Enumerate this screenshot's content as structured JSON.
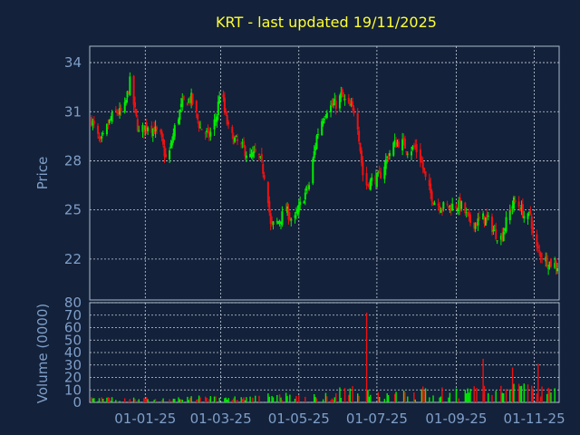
{
  "chart_data": [
    {
      "type": "candlestick",
      "title": "KRT - last updated 19/11/2025",
      "ylabel": "Price",
      "ylim": [
        19.5,
        35
      ],
      "yticks": [
        22,
        25,
        28,
        31,
        34
      ],
      "x_tick_labels": [
        "01-01-25",
        "01-03-25",
        "01-05-25",
        "01-07-25",
        "01-09-25",
        "01-11-25"
      ],
      "colors": {
        "up": "#00ee00",
        "down": "#ee1111"
      },
      "grid": true,
      "close_path": [
        [
          "2024-11-20",
          30.5
        ],
        [
          "2024-11-27",
          29.0
        ],
        [
          "2024-12-03",
          30.2
        ],
        [
          "2024-12-08",
          31.0
        ],
        [
          "2024-12-15",
          30.9
        ],
        [
          "2024-12-20",
          32.8
        ],
        [
          "2024-12-24",
          31.0
        ],
        [
          "2024-12-27",
          29.7
        ],
        [
          "2025-01-03",
          30.2
        ],
        [
          "2025-01-08",
          29.9
        ],
        [
          "2025-01-13",
          29.5
        ],
        [
          "2025-01-18",
          27.8
        ],
        [
          "2025-01-24",
          30.0
        ],
        [
          "2025-01-30",
          31.5
        ],
        [
          "2025-02-06",
          31.8
        ],
        [
          "2025-02-13",
          30.0
        ],
        [
          "2025-02-20",
          29.5
        ],
        [
          "2025-02-26",
          30.8
        ],
        [
          "2025-03-01",
          32.8
        ],
        [
          "2025-03-04",
          31.0
        ],
        [
          "2025-03-08",
          29.6
        ],
        [
          "2025-03-13",
          29.2
        ],
        [
          "2025-03-18",
          28.8
        ],
        [
          "2025-03-24",
          28.2
        ],
        [
          "2025-03-30",
          28.5
        ],
        [
          "2025-04-06",
          26.6
        ],
        [
          "2025-04-09",
          24.0
        ],
        [
          "2025-04-14",
          24.2
        ],
        [
          "2025-04-21",
          25.0
        ],
        [
          "2025-04-27",
          24.2
        ],
        [
          "2025-05-03",
          25.5
        ],
        [
          "2025-05-09",
          26.5
        ],
        [
          "2025-05-15",
          29.5
        ],
        [
          "2025-05-19",
          30.5
        ],
        [
          "2025-05-23",
          31.2
        ],
        [
          "2025-05-31",
          31.5
        ],
        [
          "2025-06-03",
          32.0
        ],
        [
          "2025-06-09",
          31.3
        ],
        [
          "2025-06-15",
          31.0
        ],
        [
          "2025-06-21",
          26.4
        ],
        [
          "2025-06-27",
          26.8
        ],
        [
          "2025-07-03",
          27.0
        ],
        [
          "2025-07-08",
          28.0
        ],
        [
          "2025-07-14",
          29.0
        ],
        [
          "2025-07-20",
          29.2
        ],
        [
          "2025-07-25",
          28.7
        ],
        [
          "2025-07-31",
          28.8
        ],
        [
          "2025-08-05",
          27.9
        ],
        [
          "2025-08-09",
          26.5
        ],
        [
          "2025-08-15",
          25.5
        ],
        [
          "2025-08-21",
          25.2
        ],
        [
          "2025-08-27",
          25.2
        ],
        [
          "2025-09-01",
          25.3
        ],
        [
          "2025-09-06",
          25.2
        ],
        [
          "2025-09-11",
          24.3
        ],
        [
          "2025-09-16",
          24.2
        ],
        [
          "2025-09-22",
          24.5
        ],
        [
          "2025-09-27",
          24.3
        ],
        [
          "2025-10-01",
          23.6
        ],
        [
          "2025-10-06",
          23.3
        ],
        [
          "2025-10-11",
          24.5
        ],
        [
          "2025-10-16",
          25.5
        ],
        [
          "2025-10-21",
          25.2
        ],
        [
          "2025-10-26",
          24.3
        ],
        [
          "2025-10-29",
          24.8
        ],
        [
          "2025-11-01",
          22.8
        ],
        [
          "2025-11-06",
          22.3
        ],
        [
          "2025-11-12",
          21.8
        ],
        [
          "2025-11-19",
          21.6
        ]
      ]
    },
    {
      "type": "bar",
      "ylabel": "Volume (0000)",
      "ylim": [
        0,
        80
      ],
      "yticks": [
        0,
        10,
        20,
        30,
        40,
        50,
        60,
        70,
        80
      ],
      "grid": true,
      "spikes": [
        [
          "2025-06-23",
          72
        ],
        [
          "2025-09-22",
          35
        ],
        [
          "2025-10-15",
          28
        ],
        [
          "2025-11-04",
          31
        ]
      ],
      "base_ranges": [
        [
          "2024-11-20",
          4
        ],
        [
          "2025-02-01",
          4
        ],
        [
          "2025-04-01",
          5
        ],
        [
          "2025-06-01",
          7
        ],
        [
          "2025-06-25",
          12
        ],
        [
          "2025-08-01",
          10
        ],
        [
          "2025-09-15",
          12
        ],
        [
          "2025-11-19",
          14
        ]
      ]
    }
  ]
}
